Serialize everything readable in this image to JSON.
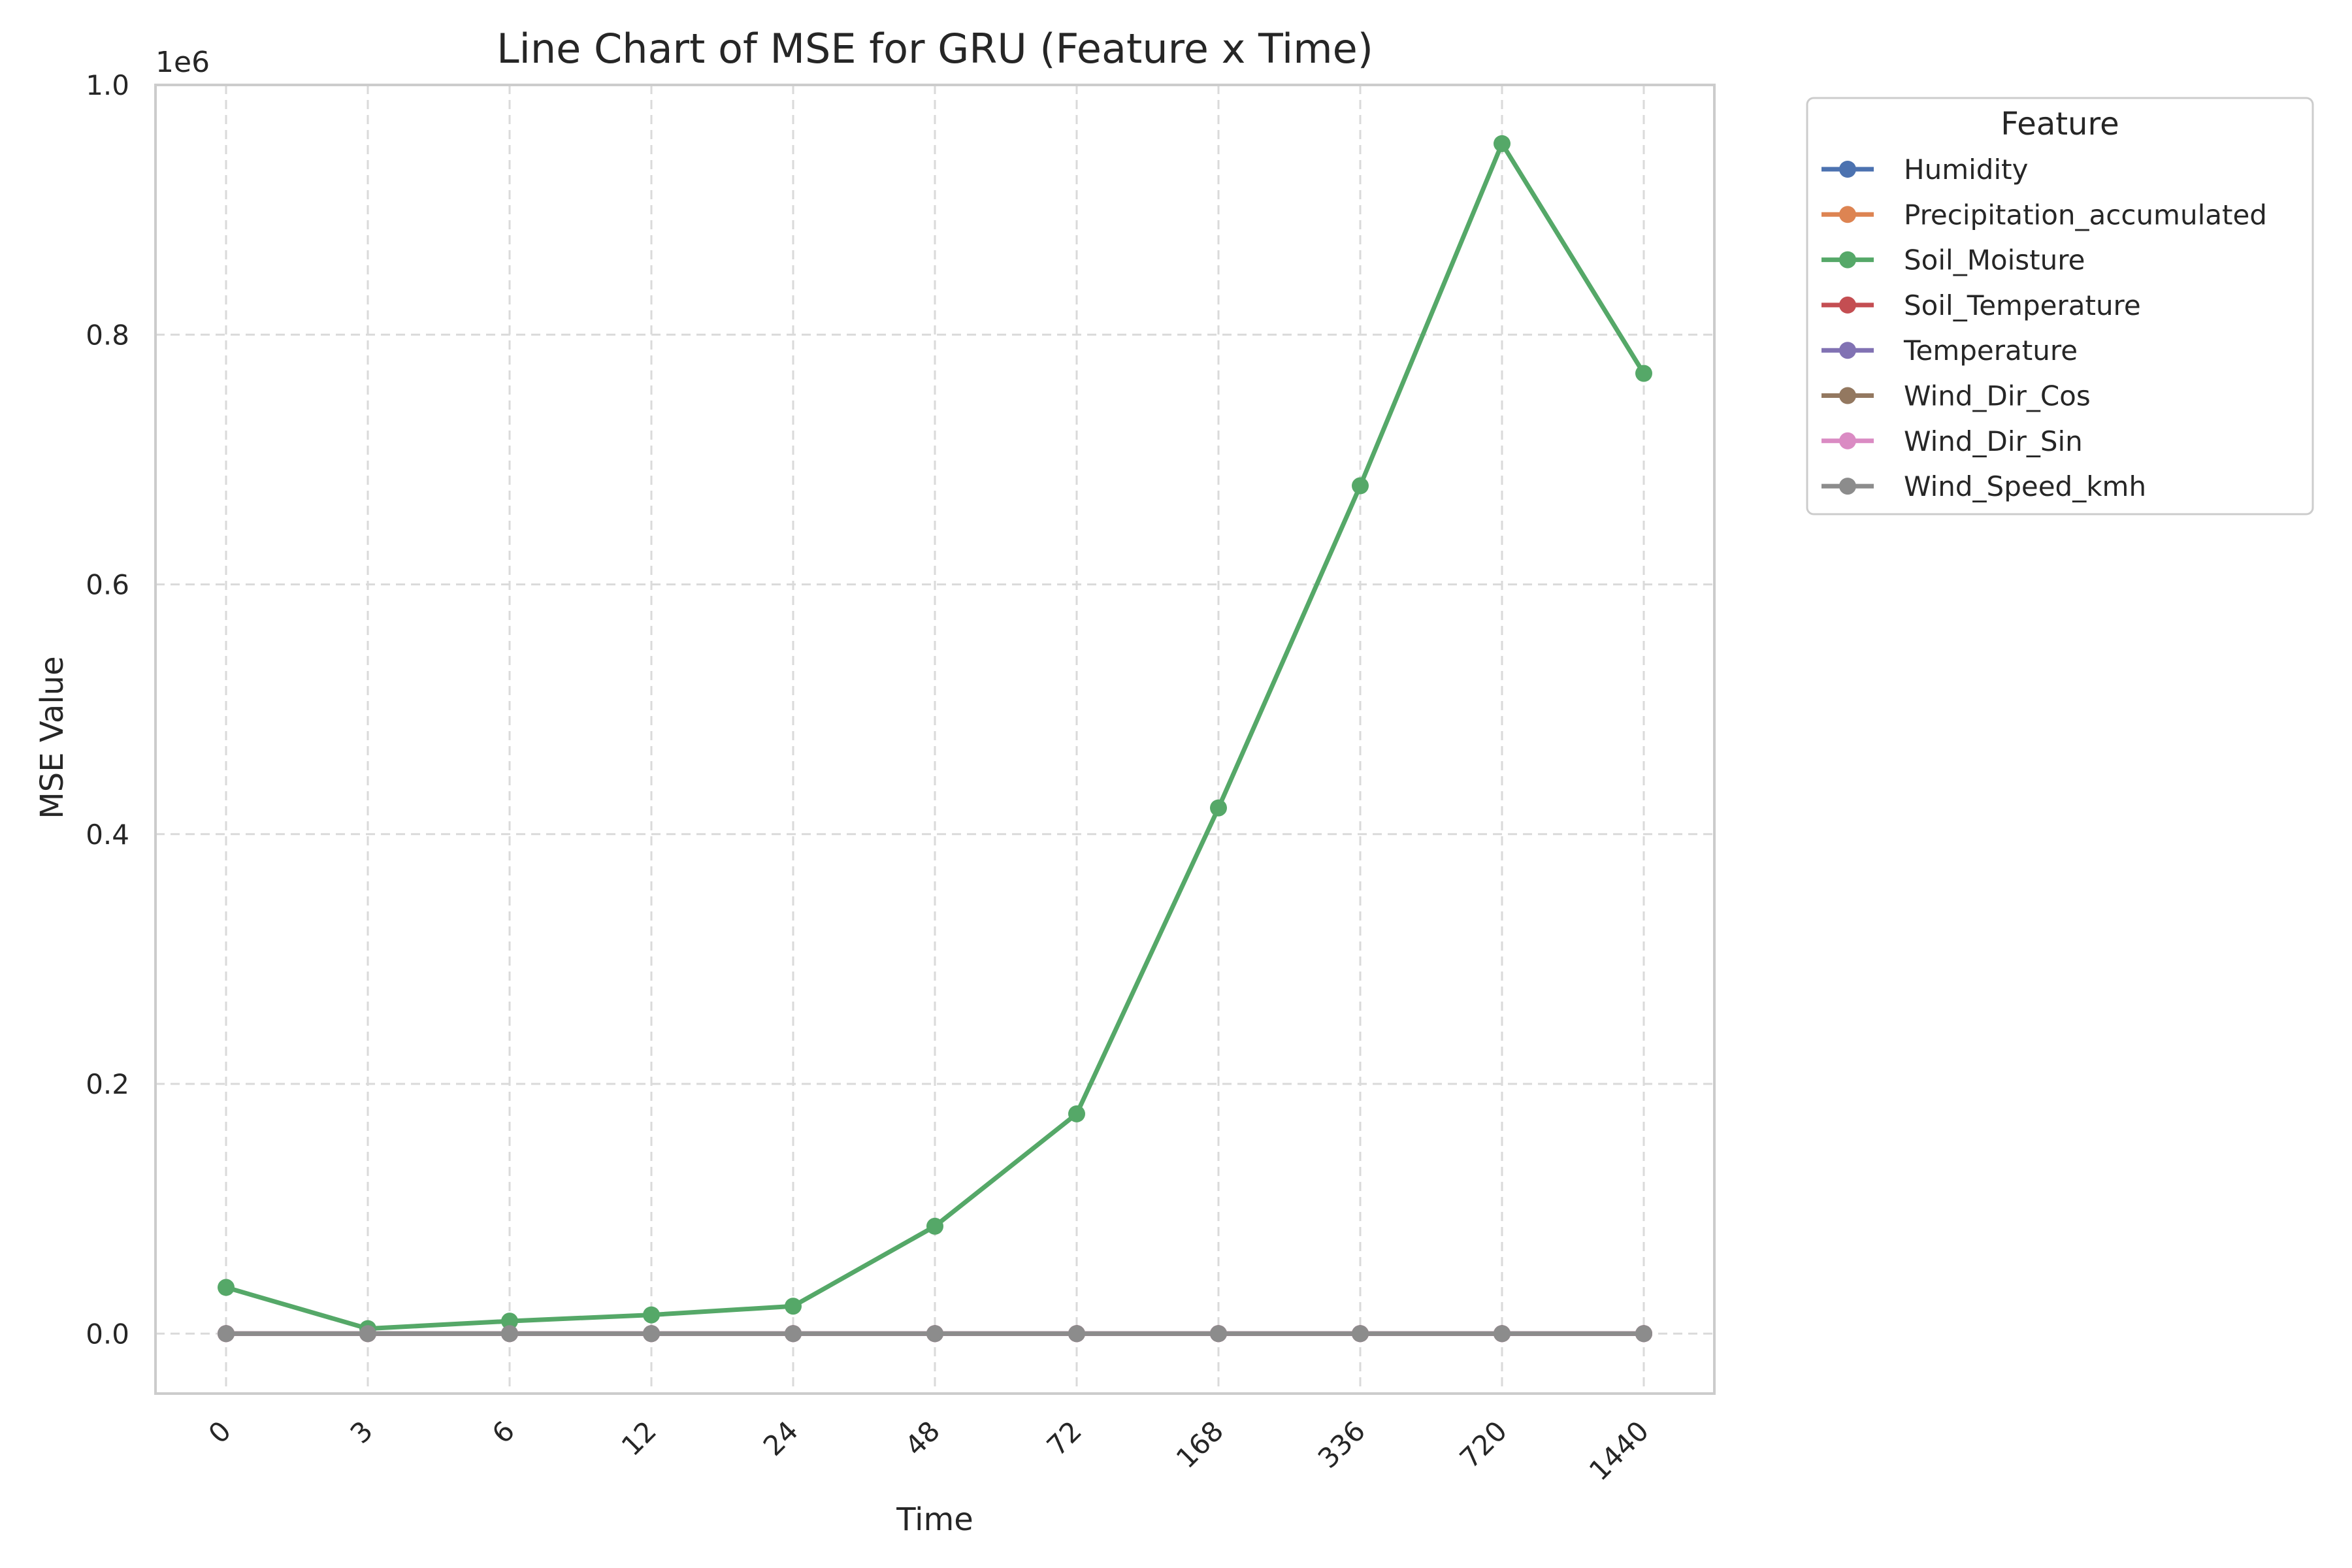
{
  "chart_data": {
    "type": "line",
    "title": "Line Chart of MSE for GRU (Feature x Time)",
    "xlabel": "Time",
    "ylabel": "MSE Value",
    "y_offset_label": "1e6",
    "y_multiplier": 1000000,
    "categories": [
      "0",
      "3",
      "6",
      "12",
      "24",
      "48",
      "72",
      "168",
      "336",
      "720",
      "1440"
    ],
    "y_ticks": [
      0.0,
      0.2,
      0.4,
      0.6,
      0.8,
      1.0
    ],
    "y_tick_labels": [
      "0.0",
      "0.2",
      "0.4",
      "0.6",
      "0.8",
      "1.0"
    ],
    "ylim": [
      -0.048,
      1.0
    ],
    "grid": true,
    "legend": {
      "title": "Feature",
      "placement": "outside-right"
    },
    "series": [
      {
        "name": "Humidity",
        "color": "#4c72b0",
        "values": [
          0,
          0,
          0,
          0,
          0,
          0,
          0,
          0,
          0,
          0,
          0
        ]
      },
      {
        "name": "Precipitation_accumulated",
        "color": "#dd8452",
        "values": [
          0,
          0,
          0,
          0,
          0,
          0,
          0,
          0,
          0,
          0,
          0
        ]
      },
      {
        "name": "Soil_Moisture",
        "color": "#55a868",
        "values": [
          37000,
          4000,
          10000,
          15000,
          22000,
          86000,
          176000,
          421000,
          679000,
          953000,
          769000
        ]
      },
      {
        "name": "Soil_Temperature",
        "color": "#c44e52",
        "values": [
          0,
          0,
          0,
          0,
          0,
          0,
          0,
          0,
          0,
          0,
          0
        ]
      },
      {
        "name": "Temperature",
        "color": "#8172b3",
        "values": [
          0,
          0,
          0,
          0,
          0,
          0,
          0,
          0,
          0,
          0,
          0
        ]
      },
      {
        "name": "Wind_Dir_Cos",
        "color": "#937860",
        "values": [
          0,
          0,
          0,
          0,
          0,
          0,
          0,
          0,
          0,
          0,
          0
        ]
      },
      {
        "name": "Wind_Dir_Sin",
        "color": "#da8bc3",
        "values": [
          0,
          0,
          0,
          0,
          0,
          0,
          0,
          0,
          0,
          0,
          0
        ]
      },
      {
        "name": "Wind_Speed_kmh",
        "color": "#8c8c8c",
        "values": [
          0,
          0,
          0,
          0,
          0,
          0,
          0,
          0,
          0,
          0,
          0
        ]
      }
    ]
  }
}
